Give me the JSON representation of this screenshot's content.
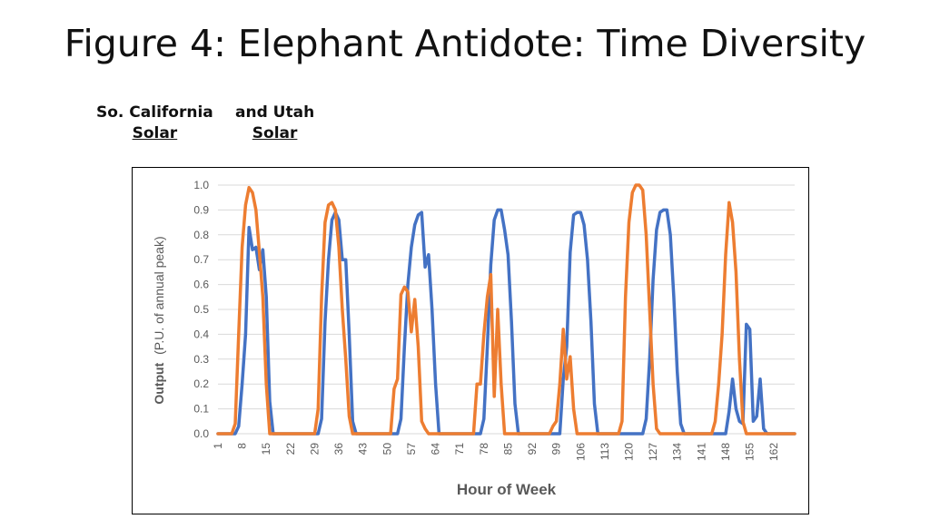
{
  "slide": {
    "title": "Figure 4: Elephant Antidote: Time Diversity"
  },
  "legend_labels": {
    "s1_line1": "So. California",
    "s1_line2": "Solar",
    "s2_line1": "and Utah",
    "s2_line2": "Solar"
  },
  "colors": {
    "series1": "#4472C4",
    "series2": "#ED7D31",
    "grid": "#D9D9D9",
    "text": "#595959"
  },
  "chart_data": {
    "type": "line",
    "xlabel": "Hour of Week",
    "ylabel_bold": "Output",
    "ylabel_rest": "(P.U. of annual peak)",
    "ylim": [
      0,
      1
    ],
    "xlim": [
      1,
      168
    ],
    "y_ticks": [
      "0.0",
      "0.1",
      "0.2",
      "0.3",
      "0.4",
      "0.5",
      "0.6",
      "0.7",
      "0.8",
      "0.9",
      "1.0"
    ],
    "x_ticks": [
      1,
      8,
      15,
      22,
      29,
      36,
      43,
      50,
      57,
      64,
      71,
      78,
      85,
      92,
      99,
      106,
      113,
      120,
      127,
      134,
      141,
      148,
      155,
      162
    ],
    "grid": true,
    "series": [
      {
        "color": "#4472C4",
        "points": [
          [
            1,
            0
          ],
          [
            6,
            0
          ],
          [
            7,
            0.03
          ],
          [
            8,
            0.2
          ],
          [
            9,
            0.4
          ],
          [
            10,
            0.83
          ],
          [
            11,
            0.74
          ],
          [
            12,
            0.75
          ],
          [
            13,
            0.66
          ],
          [
            14,
            0.74
          ],
          [
            15,
            0.55
          ],
          [
            16,
            0.13
          ],
          [
            17,
            0
          ],
          [
            30,
            0
          ],
          [
            31,
            0.06
          ],
          [
            32,
            0.45
          ],
          [
            33,
            0.7
          ],
          [
            34,
            0.86
          ],
          [
            35,
            0.89
          ],
          [
            36,
            0.86
          ],
          [
            37,
            0.7
          ],
          [
            38,
            0.7
          ],
          [
            39,
            0.4
          ],
          [
            40,
            0.05
          ],
          [
            41,
            0
          ],
          [
            53,
            0
          ],
          [
            54,
            0.06
          ],
          [
            55,
            0.35
          ],
          [
            56,
            0.6
          ],
          [
            57,
            0.75
          ],
          [
            58,
            0.84
          ],
          [
            59,
            0.88
          ],
          [
            60,
            0.89
          ],
          [
            61,
            0.67
          ],
          [
            62,
            0.72
          ],
          [
            63,
            0.5
          ],
          [
            64,
            0.2
          ],
          [
            65,
            0
          ],
          [
            77,
            0
          ],
          [
            78,
            0.06
          ],
          [
            79,
            0.35
          ],
          [
            80,
            0.68
          ],
          [
            81,
            0.86
          ],
          [
            82,
            0.9
          ],
          [
            83,
            0.9
          ],
          [
            84,
            0.82
          ],
          [
            85,
            0.72
          ],
          [
            86,
            0.45
          ],
          [
            87,
            0.12
          ],
          [
            88,
            0
          ],
          [
            100,
            0
          ],
          [
            101,
            0.22
          ],
          [
            102,
            0.35
          ],
          [
            103,
            0.73
          ],
          [
            104,
            0.88
          ],
          [
            105,
            0.89
          ],
          [
            106,
            0.89
          ],
          [
            107,
            0.84
          ],
          [
            108,
            0.7
          ],
          [
            109,
            0.45
          ],
          [
            110,
            0.12
          ],
          [
            111,
            0
          ],
          [
            124,
            0
          ],
          [
            125,
            0.06
          ],
          [
            126,
            0.3
          ],
          [
            127,
            0.62
          ],
          [
            128,
            0.82
          ],
          [
            129,
            0.89
          ],
          [
            130,
            0.9
          ],
          [
            131,
            0.9
          ],
          [
            132,
            0.8
          ],
          [
            133,
            0.55
          ],
          [
            134,
            0.25
          ],
          [
            135,
            0.04
          ],
          [
            136,
            0
          ],
          [
            148,
            0
          ],
          [
            149,
            0.09
          ],
          [
            150,
            0.22
          ],
          [
            151,
            0.1
          ],
          [
            152,
            0.05
          ],
          [
            153,
            0.04
          ],
          [
            154,
            0.44
          ],
          [
            155,
            0.42
          ],
          [
            156,
            0.05
          ],
          [
            157,
            0.07
          ],
          [
            158,
            0.22
          ],
          [
            159,
            0.02
          ],
          [
            160,
            0
          ],
          [
            168,
            0
          ]
        ]
      },
      {
        "color": "#ED7D31",
        "points": [
          [
            1,
            0
          ],
          [
            5,
            0
          ],
          [
            6,
            0.04
          ],
          [
            7,
            0.4
          ],
          [
            8,
            0.75
          ],
          [
            9,
            0.92
          ],
          [
            10,
            0.99
          ],
          [
            11,
            0.97
          ],
          [
            12,
            0.9
          ],
          [
            13,
            0.73
          ],
          [
            14,
            0.55
          ],
          [
            15,
            0.2
          ],
          [
            16,
            0
          ],
          [
            29,
            0
          ],
          [
            30,
            0.1
          ],
          [
            31,
            0.55
          ],
          [
            32,
            0.85
          ],
          [
            33,
            0.92
          ],
          [
            34,
            0.93
          ],
          [
            35,
            0.9
          ],
          [
            36,
            0.75
          ],
          [
            37,
            0.5
          ],
          [
            38,
            0.3
          ],
          [
            39,
            0.07
          ],
          [
            40,
            0
          ],
          [
            51,
            0
          ],
          [
            52,
            0.18
          ],
          [
            53,
            0.22
          ],
          [
            54,
            0.56
          ],
          [
            55,
            0.59
          ],
          [
            56,
            0.57
          ],
          [
            57,
            0.41
          ],
          [
            58,
            0.54
          ],
          [
            59,
            0.35
          ],
          [
            60,
            0.05
          ],
          [
            61,
            0.02
          ],
          [
            62,
            0
          ],
          [
            75,
            0
          ],
          [
            76,
            0.2
          ],
          [
            77,
            0.2
          ],
          [
            78,
            0.4
          ],
          [
            79,
            0.55
          ],
          [
            80,
            0.64
          ],
          [
            81,
            0.15
          ],
          [
            82,
            0.5
          ],
          [
            83,
            0.2
          ],
          [
            84,
            0
          ],
          [
            97,
            0
          ],
          [
            98,
            0.03
          ],
          [
            99,
            0.05
          ],
          [
            100,
            0.2
          ],
          [
            101,
            0.42
          ],
          [
            102,
            0.22
          ],
          [
            103,
            0.31
          ],
          [
            104,
            0.1
          ],
          [
            105,
            0
          ],
          [
            117,
            0
          ],
          [
            118,
            0.05
          ],
          [
            119,
            0.55
          ],
          [
            120,
            0.85
          ],
          [
            121,
            0.97
          ],
          [
            122,
            1.0
          ],
          [
            123,
            1.0
          ],
          [
            124,
            0.98
          ],
          [
            125,
            0.8
          ],
          [
            126,
            0.5
          ],
          [
            127,
            0.2
          ],
          [
            128,
            0.02
          ],
          [
            129,
            0
          ],
          [
            144,
            0
          ],
          [
            145,
            0.05
          ],
          [
            146,
            0.2
          ],
          [
            147,
            0.4
          ],
          [
            148,
            0.72
          ],
          [
            149,
            0.93
          ],
          [
            150,
            0.85
          ],
          [
            151,
            0.65
          ],
          [
            152,
            0.3
          ],
          [
            153,
            0.05
          ],
          [
            154,
            0
          ],
          [
            168,
            0
          ]
        ]
      }
    ]
  }
}
